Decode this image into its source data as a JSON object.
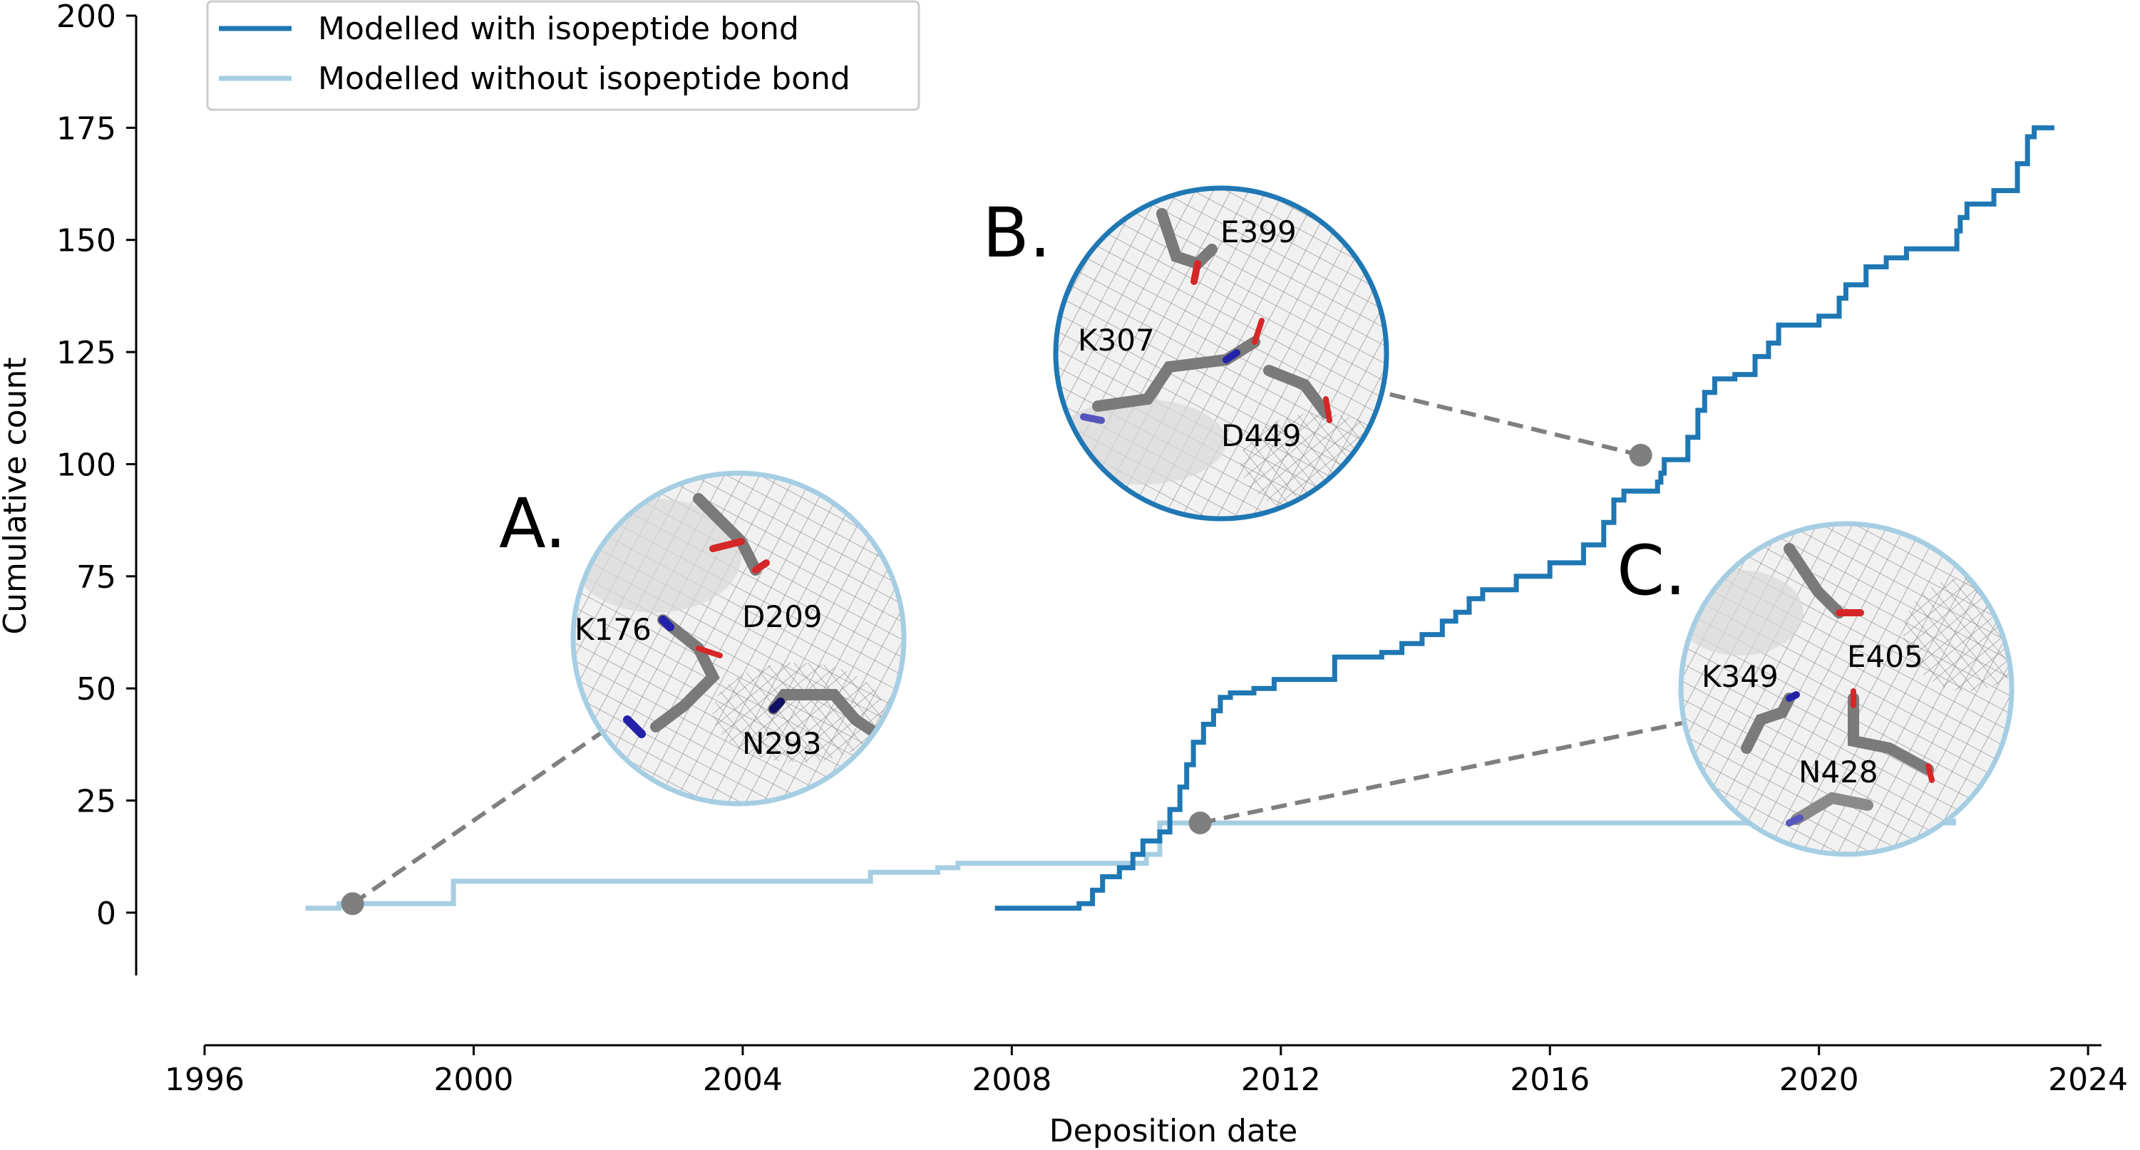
{
  "chart_data": {
    "type": "line",
    "xlabel": "Deposition date",
    "ylabel": "Cumulative count",
    "xlim": [
      1996,
      2024.2
    ],
    "ylim": [
      -14,
      200
    ],
    "x_ticks": [
      1996,
      2000,
      2004,
      2008,
      2012,
      2016,
      2020,
      2024
    ],
    "y_ticks": [
      0,
      25,
      50,
      75,
      100,
      125,
      150,
      175,
      200
    ],
    "legend_position": "top-left",
    "series": [
      {
        "name": "Modelled with isopeptide bond",
        "color": "#1f77b4",
        "step": true,
        "points": [
          [
            2007.75,
            1
          ],
          [
            2009.0,
            2
          ],
          [
            2009.2,
            5
          ],
          [
            2009.35,
            8
          ],
          [
            2009.6,
            10
          ],
          [
            2009.8,
            13
          ],
          [
            2009.95,
            16
          ],
          [
            2010.2,
            18
          ],
          [
            2010.35,
            23
          ],
          [
            2010.5,
            28
          ],
          [
            2010.6,
            33
          ],
          [
            2010.7,
            38
          ],
          [
            2010.85,
            42
          ],
          [
            2011.0,
            45
          ],
          [
            2011.1,
            48
          ],
          [
            2011.25,
            49
          ],
          [
            2011.6,
            50
          ],
          [
            2011.9,
            52
          ],
          [
            2012.8,
            57
          ],
          [
            2013.5,
            58
          ],
          [
            2013.8,
            60
          ],
          [
            2014.1,
            62
          ],
          [
            2014.4,
            65
          ],
          [
            2014.6,
            67
          ],
          [
            2014.8,
            70
          ],
          [
            2015.0,
            72
          ],
          [
            2015.5,
            75
          ],
          [
            2016.0,
            78
          ],
          [
            2016.5,
            82
          ],
          [
            2016.8,
            87
          ],
          [
            2016.95,
            92
          ],
          [
            2017.1,
            94
          ],
          [
            2017.6,
            96
          ],
          [
            2017.65,
            98
          ],
          [
            2017.7,
            101
          ],
          [
            2017.9,
            101
          ],
          [
            2018.05,
            106
          ],
          [
            2018.2,
            112
          ],
          [
            2018.3,
            116
          ],
          [
            2018.45,
            119
          ],
          [
            2018.75,
            120
          ],
          [
            2019.05,
            124
          ],
          [
            2019.25,
            127
          ],
          [
            2019.4,
            131
          ],
          [
            2020.0,
            133
          ],
          [
            2020.3,
            137
          ],
          [
            2020.4,
            140
          ],
          [
            2020.7,
            144
          ],
          [
            2021.0,
            146
          ],
          [
            2021.3,
            148
          ],
          [
            2022.05,
            152
          ],
          [
            2022.1,
            155
          ],
          [
            2022.2,
            158
          ],
          [
            2022.6,
            161
          ],
          [
            2022.95,
            167
          ],
          [
            2023.1,
            173
          ],
          [
            2023.2,
            175
          ],
          [
            2023.5,
            175
          ]
        ]
      },
      {
        "name": "Modelled without isopeptide bond",
        "color": "#a6cee3",
        "step": true,
        "points": [
          [
            1997.5,
            1
          ],
          [
            1998.0,
            2
          ],
          [
            1999.7,
            7
          ],
          [
            2005.9,
            9
          ],
          [
            2006.9,
            10
          ],
          [
            2007.2,
            11
          ],
          [
            2008.5,
            11
          ],
          [
            2010.0,
            13
          ],
          [
            2010.2,
            20
          ],
          [
            2011.0,
            20
          ],
          [
            2022.0,
            21
          ]
        ]
      }
    ],
    "annotations": [
      {
        "label": "A.",
        "anchor": [
          1998.2,
          2
        ],
        "residues": [
          "K176",
          "D209",
          "N293"
        ],
        "ring_color": "#a6cee3"
      },
      {
        "label": "B.",
        "anchor": [
          2017.35,
          102
        ],
        "residues": [
          "E399",
          "K307",
          "D449"
        ],
        "ring_color": "#1f77b4"
      },
      {
        "label": "C.",
        "anchor": [
          2010.8,
          20
        ],
        "residues": [
          "K349",
          "E405",
          "N428"
        ],
        "ring_color": "#a6cee3"
      }
    ]
  }
}
